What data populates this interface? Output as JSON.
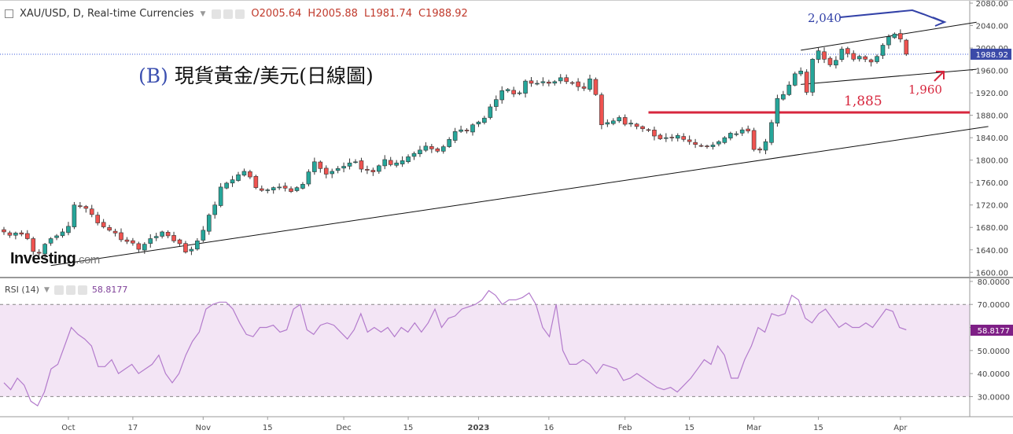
{
  "header": {
    "symbol": "XAU/USD, D, Real-time Currencies",
    "open": "O2005.64",
    "high": "H2005.88",
    "low": "L1981.74",
    "close": "C1988.92"
  },
  "annotation_title": {
    "prefix": "(B)",
    "text": "現貨黃金/美元(日線圖)"
  },
  "logo": {
    "text": "Investing",
    "suffix": ".com"
  },
  "rsi_panel": {
    "label": "RSI (14)",
    "value": "58.8177"
  },
  "colors": {
    "up": "#26a69a",
    "down": "#ef5350",
    "rsi": "#b37bcc",
    "rsi_band": "#f3e5f5",
    "annotation_red": "#d7263d",
    "annotation_blue": "#3342a8"
  },
  "chart_data": [
    {
      "type": "candlestick",
      "title": "",
      "y_ticks": [
        "2080.00",
        "2040.00",
        "2000.00",
        "1960.00",
        "1920.00",
        "1880.00",
        "1840.00",
        "1800.00",
        "1760.00",
        "1720.00",
        "1680.00",
        "1640.00",
        "1600.00"
      ],
      "ylim": [
        1592,
        2080
      ],
      "x_ticks": [
        "Oct",
        "17",
        "Nov",
        "15",
        "Dec",
        "15",
        "2023",
        "16",
        "Feb",
        "15",
        "Mar",
        "15",
        "Apr"
      ],
      "last_price": "1988.92",
      "annotations": [
        "2,040",
        "1,885",
        "1,960"
      ],
      "closes": [
        1672,
        1666,
        1670,
        1668,
        1660,
        1637,
        1634,
        1650,
        1660,
        1665,
        1672,
        1682,
        1720,
        1718,
        1714,
        1703,
        1688,
        1681,
        1675,
        1670,
        1658,
        1655,
        1652,
        1641,
        1650,
        1660,
        1664,
        1672,
        1665,
        1656,
        1651,
        1636,
        1641,
        1656,
        1675,
        1702,
        1720,
        1752,
        1759,
        1765,
        1774,
        1780,
        1770,
        1751,
        1746,
        1747,
        1751,
        1752,
        1750,
        1744,
        1751,
        1757,
        1779,
        1797,
        1785,
        1775,
        1780,
        1785,
        1789,
        1795,
        1797,
        1784,
        1782,
        1779,
        1790,
        1801,
        1792,
        1795,
        1799,
        1806,
        1812,
        1818,
        1825,
        1820,
        1816,
        1824,
        1837,
        1851,
        1854,
        1852,
        1863,
        1868,
        1875,
        1895,
        1908,
        1924,
        1926,
        1918,
        1920,
        1941,
        1937,
        1937,
        1940,
        1937,
        1940,
        1947,
        1940,
        1938,
        1931,
        1928,
        1945,
        1917,
        1863,
        1867,
        1870,
        1876,
        1864,
        1866,
        1860,
        1856,
        1854,
        1843,
        1838,
        1840,
        1841,
        1844,
        1837,
        1833,
        1828,
        1826,
        1824,
        1827,
        1833,
        1840,
        1848,
        1847,
        1854,
        1852,
        1819,
        1818,
        1833,
        1867,
        1910,
        1917,
        1934,
        1954,
        1959,
        1921,
        1980,
        1995,
        1980,
        1970,
        1978,
        1998,
        1990,
        1980,
        1985,
        1980,
        1975,
        1985,
        2005,
        2020,
        2025,
        2016,
        1989
      ],
      "support_line": {
        "from": [
          8,
          1612
        ],
        "to": [
          168,
          1860
        ]
      },
      "channel_upper": {
        "from": [
          136,
          1996
        ],
        "to": [
          166,
          2046
        ]
      },
      "channel_lower": {
        "from": [
          136,
          1935
        ],
        "to": [
          166,
          1962
        ]
      },
      "horizontal_level": 1885
    },
    {
      "type": "line",
      "title": "",
      "y_ticks": [
        "80.0000",
        "70.0000",
        "60.0000",
        "50.0000",
        "40.0000",
        "30.0000"
      ],
      "ylim": [
        24,
        81
      ],
      "reference_lines": [
        70,
        30
      ],
      "last_value": "58.8177",
      "series": [
        {
          "values": [
            36,
            33,
            38,
            35,
            28,
            26,
            32,
            42,
            44,
            52,
            60,
            57,
            55,
            52,
            43,
            43,
            46,
            40,
            42,
            44,
            40,
            42,
            44,
            48,
            40,
            36,
            40,
            48,
            54,
            58,
            68,
            70,
            71,
            71,
            68,
            62,
            57,
            56,
            60,
            60,
            61,
            58,
            59,
            68,
            70,
            59,
            57,
            61,
            62,
            61,
            58,
            55,
            59,
            66,
            58,
            60,
            58,
            60,
            56,
            60,
            58,
            62,
            58,
            62,
            68,
            60,
            64,
            65,
            68,
            69,
            70,
            72,
            76,
            74,
            70,
            72,
            72,
            73,
            75,
            70,
            60,
            56,
            70,
            50,
            44,
            44,
            46,
            44,
            40,
            44,
            43,
            42,
            37,
            38,
            40,
            38,
            36,
            34,
            33,
            34,
            32,
            35,
            38,
            42,
            46,
            44,
            52,
            48,
            38,
            38,
            46,
            52,
            60,
            58,
            66,
            65,
            66,
            74,
            72,
            64,
            62,
            66,
            68,
            64,
            60,
            62,
            60,
            60,
            62,
            60,
            64,
            68,
            67,
            60,
            59
          ]
        }
      ]
    }
  ]
}
